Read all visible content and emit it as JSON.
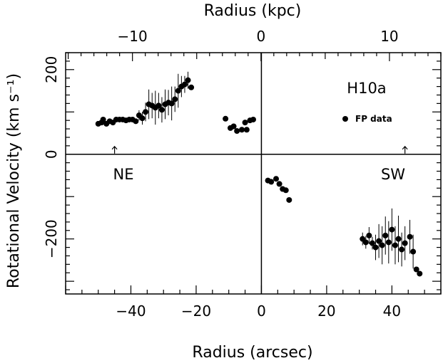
{
  "chart_data": {
    "type": "scatter",
    "xlabel": "Radius (arcsec)",
    "ylabel": "Rotational Velocity (km s⁻¹)",
    "top_xlabel": "Radius (kpc)",
    "xlim": [
      -60,
      55
    ],
    "ylim": [
      -330,
      240
    ],
    "top_xlim_kpc": [
      -15.2,
      14.0
    ],
    "x_ticks": [
      -40,
      -20,
      0,
      20,
      40
    ],
    "x_tick_labels": [
      "−40",
      "−20",
      "0",
      "20",
      "40"
    ],
    "y_ticks": [
      -200,
      0,
      200
    ],
    "y_tick_labels": [
      "−200",
      "0",
      "200"
    ],
    "top_x_ticks": [
      -10,
      0,
      10
    ],
    "top_x_tick_labels": [
      "−10",
      "0",
      "10"
    ],
    "grid": false,
    "labels": {
      "galaxy": "H10a",
      "ne": "NE",
      "sw": "SW"
    },
    "legend": {
      "label": "FP data",
      "position": "top-right"
    },
    "arrows_x": [
      -45,
      44
    ],
    "series": [
      {
        "name": "FP data",
        "points": [
          {
            "x": -50,
            "y": 72,
            "err": 0
          },
          {
            "x": -49,
            "y": 75,
            "err": 0
          },
          {
            "x": -48.5,
            "y": 82,
            "err": 0
          },
          {
            "x": -47.5,
            "y": 72,
            "err": 0
          },
          {
            "x": -46.5,
            "y": 78,
            "err": 0
          },
          {
            "x": -45.5,
            "y": 75,
            "err": 0
          },
          {
            "x": -44.5,
            "y": 82,
            "err": 0
          },
          {
            "x": -43.5,
            "y": 82,
            "err": 0
          },
          {
            "x": -42.5,
            "y": 82,
            "err": 0
          },
          {
            "x": -41.5,
            "y": 80,
            "err": 0
          },
          {
            "x": -40.5,
            "y": 82,
            "err": 0
          },
          {
            "x": -39.5,
            "y": 82,
            "err": 0
          },
          {
            "x": -38.5,
            "y": 78,
            "err": 0
          },
          {
            "x": -37.5,
            "y": 92,
            "err": 12
          },
          {
            "x": -36.5,
            "y": 85,
            "err": 15
          },
          {
            "x": -35.5,
            "y": 100,
            "err": 22
          },
          {
            "x": -34.5,
            "y": 118,
            "err": 35
          },
          {
            "x": -33.5,
            "y": 115,
            "err": 30
          },
          {
            "x": -32.5,
            "y": 110,
            "err": 40
          },
          {
            "x": -31.5,
            "y": 115,
            "err": 30
          },
          {
            "x": -30.5,
            "y": 105,
            "err": 30
          },
          {
            "x": -29.5,
            "y": 118,
            "err": 35
          },
          {
            "x": -28.5,
            "y": 122,
            "err": 30
          },
          {
            "x": -27.5,
            "y": 120,
            "err": 40
          },
          {
            "x": -26.5,
            "y": 130,
            "err": 30
          },
          {
            "x": -25.5,
            "y": 150,
            "err": 40
          },
          {
            "x": -24.5,
            "y": 160,
            "err": 25
          },
          {
            "x": -23.5,
            "y": 165,
            "err": 20
          },
          {
            "x": -22.5,
            "y": 175,
            "err": 20
          },
          {
            "x": -21.5,
            "y": 158,
            "err": 0
          },
          {
            "x": -11,
            "y": 84,
            "err": 0
          },
          {
            "x": -9.5,
            "y": 62,
            "err": 0
          },
          {
            "x": -8.5,
            "y": 66,
            "err": 0
          },
          {
            "x": -7.5,
            "y": 55,
            "err": 0
          },
          {
            "x": -6,
            "y": 58,
            "err": 0
          },
          {
            "x": -5,
            "y": 75,
            "err": 0
          },
          {
            "x": -4.5,
            "y": 58,
            "err": 0
          },
          {
            "x": -3.5,
            "y": 80,
            "err": 0
          },
          {
            "x": -2.5,
            "y": 82,
            "err": 0
          },
          {
            "x": 2,
            "y": -62,
            "err": 0
          },
          {
            "x": 3,
            "y": -65,
            "err": 0
          },
          {
            "x": 4.5,
            "y": -58,
            "err": 0
          },
          {
            "x": 5.5,
            "y": -70,
            "err": 0
          },
          {
            "x": 6.5,
            "y": -82,
            "err": 0
          },
          {
            "x": 7.5,
            "y": -85,
            "err": 0
          },
          {
            "x": 8.5,
            "y": -108,
            "err": 0
          },
          {
            "x": 31,
            "y": -200,
            "err": 15
          },
          {
            "x": 32,
            "y": -208,
            "err": 15
          },
          {
            "x": 33,
            "y": -192,
            "err": 20
          },
          {
            "x": 34,
            "y": -210,
            "err": 15
          },
          {
            "x": 35,
            "y": -220,
            "err": 30
          },
          {
            "x": 36,
            "y": -205,
            "err": 40
          },
          {
            "x": 37,
            "y": -215,
            "err": 45
          },
          {
            "x": 38,
            "y": -192,
            "err": 45
          },
          {
            "x": 39,
            "y": -208,
            "err": 50
          },
          {
            "x": 40,
            "y": -178,
            "err": 50
          },
          {
            "x": 41,
            "y": -215,
            "err": 45
          },
          {
            "x": 42,
            "y": -200,
            "err": 55
          },
          {
            "x": 43,
            "y": -225,
            "err": 40
          },
          {
            "x": 44,
            "y": -210,
            "err": 40
          },
          {
            "x": 45.5,
            "y": -195,
            "err": 40
          },
          {
            "x": 46.5,
            "y": -230,
            "err": 40
          },
          {
            "x": 47.5,
            "y": -272,
            "err": 0
          },
          {
            "x": 48.5,
            "y": -282,
            "err": 0
          }
        ]
      }
    ]
  }
}
